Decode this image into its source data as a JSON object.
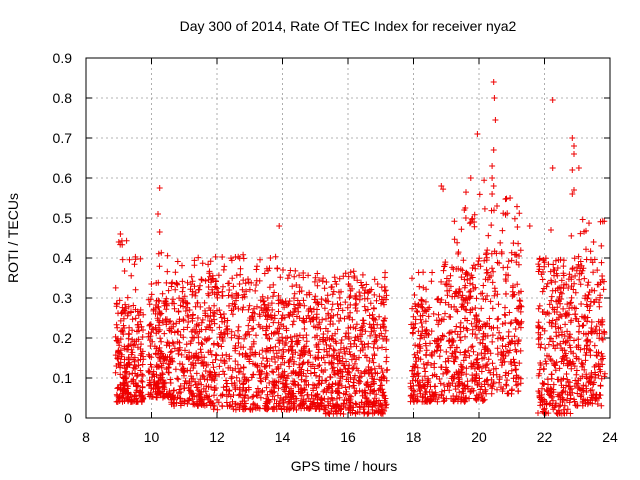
{
  "chart_data": {
    "type": "scatter",
    "title": "Day 300 of 2014, Rate Of TEC Index for receiver nya2",
    "xlabel": "GPS time / hours",
    "ylabel": "ROTI / TECUs",
    "xlim": [
      8,
      24
    ],
    "ylim": [
      0,
      0.9
    ],
    "xticks": [
      8,
      10,
      12,
      14,
      16,
      18,
      20,
      22,
      24
    ],
    "yticks": [
      0,
      0.1,
      0.2,
      0.3,
      0.4,
      0.5,
      0.6,
      0.7,
      0.8,
      0.9
    ],
    "grid": true,
    "marker": "+",
    "color": "#ee0000",
    "series": [
      {
        "name": "ROTI",
        "clusters": [
          {
            "x_range": [
              8.9,
              9.75
            ],
            "y_base": [
              0.04,
              0.3
            ],
            "y_peak": 0.45,
            "count": 260
          },
          {
            "x_range": [
              9.9,
              10.6
            ],
            "y_base": [
              0.05,
              0.3
            ],
            "y_peak": 0.42,
            "count": 200
          },
          {
            "x_range": [
              10.6,
              11.9
            ],
            "y_base": [
              0.03,
              0.34
            ],
            "y_peak": 0.41,
            "count": 330
          },
          {
            "x_range": [
              11.9,
              13.9
            ],
            "y_base": [
              0.02,
              0.34
            ],
            "y_peak": 0.41,
            "count": 460
          },
          {
            "x_range": [
              13.9,
              15.3
            ],
            "y_base": [
              0.02,
              0.3
            ],
            "y_peak": 0.37,
            "count": 380
          },
          {
            "x_range": [
              15.3,
              17.2
            ],
            "y_base": [
              0.01,
              0.32
            ],
            "y_peak": 0.37,
            "count": 520
          },
          {
            "x_range": [
              17.9,
              18.9
            ],
            "y_base": [
              0.04,
              0.3
            ],
            "y_peak": 0.37,
            "count": 220
          },
          {
            "x_range": [
              18.9,
              20.2
            ],
            "y_base": [
              0.04,
              0.4
            ],
            "y_peak": 0.6,
            "count": 330
          },
          {
            "x_range": [
              20.2,
              21.3
            ],
            "y_base": [
              0.06,
              0.42
            ],
            "y_peak": 0.55,
            "count": 220
          },
          {
            "x_range": [
              21.8,
              22.8
            ],
            "y_base": [
              0.01,
              0.35
            ],
            "y_peak": 0.4,
            "count": 280
          },
          {
            "x_range": [
              22.8,
              23.85
            ],
            "y_base": [
              0.03,
              0.4
            ],
            "y_peak": 0.5,
            "count": 260
          }
        ],
        "outliers": [
          {
            "x": 20.45,
            "y": 0.84
          },
          {
            "x": 20.47,
            "y": 0.8
          },
          {
            "x": 20.5,
            "y": 0.745
          },
          {
            "x": 22.25,
            "y": 0.795
          },
          {
            "x": 19.95,
            "y": 0.71
          },
          {
            "x": 22.85,
            "y": 0.7
          },
          {
            "x": 22.9,
            "y": 0.68
          },
          {
            "x": 22.9,
            "y": 0.66
          },
          {
            "x": 20.45,
            "y": 0.67
          },
          {
            "x": 20.4,
            "y": 0.63
          },
          {
            "x": 22.85,
            "y": 0.62
          },
          {
            "x": 23.05,
            "y": 0.625
          },
          {
            "x": 22.25,
            "y": 0.625
          },
          {
            "x": 20.4,
            "y": 0.6
          },
          {
            "x": 19.75,
            "y": 0.6
          },
          {
            "x": 20.45,
            "y": 0.58
          },
          {
            "x": 18.85,
            "y": 0.58
          },
          {
            "x": 10.25,
            "y": 0.575
          },
          {
            "x": 22.9,
            "y": 0.57
          },
          {
            "x": 22.85,
            "y": 0.56
          },
          {
            "x": 20.95,
            "y": 0.55
          },
          {
            "x": 20.4,
            "y": 0.56
          },
          {
            "x": 19.55,
            "y": 0.52
          },
          {
            "x": 10.2,
            "y": 0.51
          },
          {
            "x": 20.55,
            "y": 0.53
          },
          {
            "x": 21.55,
            "y": 0.48
          },
          {
            "x": 22.2,
            "y": 0.47
          },
          {
            "x": 13.9,
            "y": 0.48
          },
          {
            "x": 10.25,
            "y": 0.465
          },
          {
            "x": 9.05,
            "y": 0.46
          },
          {
            "x": 9.0,
            "y": 0.44
          },
          {
            "x": 23.5,
            "y": 0.44
          },
          {
            "x": 19.6,
            "y": 0.5
          },
          {
            "x": 19.85,
            "y": 0.49
          }
        ]
      }
    ]
  }
}
